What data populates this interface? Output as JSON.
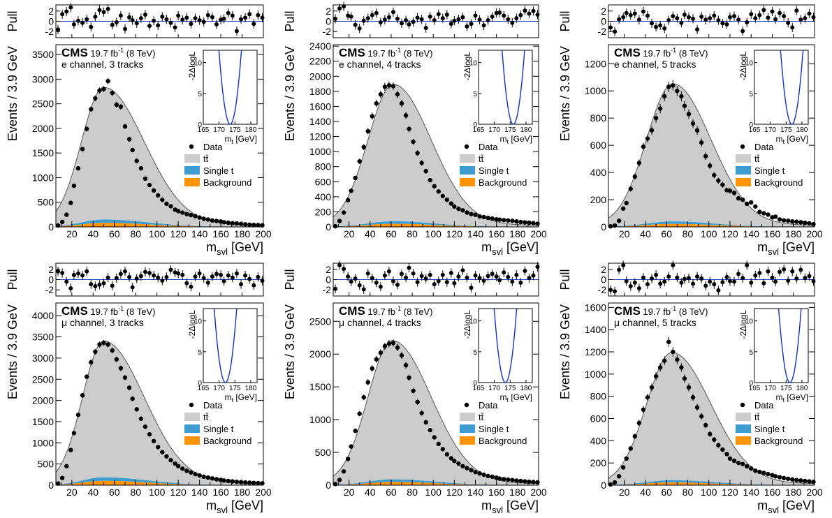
{
  "figure": {
    "colors": {
      "data": "#000000",
      "ttbar": "#cccccc",
      "single_t": "#3e9dd0",
      "background": "#ff9407",
      "pull_line": "#1f3fbf",
      "likelihood_curve": "#1030c8",
      "fit_line": "#555555"
    },
    "legend": {
      "data": "Data",
      "ttbar": "tt̄",
      "single_t": "Single t",
      "background": "Background"
    },
    "cms_label": "CMS",
    "lumi_label_parts": {
      "before": "19.7 fb",
      "sup": "-1",
      "after": " (8 TeV)"
    },
    "pull_label": "Pull",
    "y_label": "Events / 3.9 GeV",
    "x_label_parts": {
      "main": "m",
      "sub": "svl",
      "unit": " [GeV]"
    },
    "inset_y_label": "-2ΔlogL",
    "inset_x_label_parts": {
      "main": "m",
      "sub": "t",
      "unit": " [GeV]"
    }
  },
  "chart_data": [
    {
      "type": "area",
      "channel": "e channel, 3 tracks",
      "peak_x": 50,
      "sigma_lo": 21,
      "sigma_hi": 38,
      "peak_y": 2800,
      "bkg_peak": 150,
      "ylim": [
        0,
        3700
      ],
      "yticks": [
        0,
        500,
        1000,
        1500,
        2000,
        2500,
        3000,
        3500
      ],
      "xlim": [
        5,
        200
      ],
      "xticks": [
        20,
        40,
        60,
        80,
        100,
        120,
        140,
        160,
        180,
        200
      ],
      "x": [
        7,
        11,
        15,
        19,
        22,
        26,
        30,
        34,
        38,
        42,
        46,
        50,
        54,
        58,
        62,
        66,
        70,
        74,
        77,
        81,
        85,
        89,
        93,
        97,
        101,
        105,
        109,
        113,
        117,
        120,
        124,
        128,
        132,
        136,
        140,
        144,
        148,
        152,
        156,
        160,
        163,
        167,
        171,
        175,
        179,
        183,
        187,
        191,
        195,
        199
      ],
      "values": [
        28,
        101,
        247,
        488,
        835,
        1188,
        1580,
        1990,
        2390,
        2610,
        2770,
        2800,
        2960,
        2720,
        2480,
        2440,
        2040,
        1780,
        1560,
        1340,
        1190,
        980,
        850,
        740,
        640,
        550,
        470,
        420,
        350,
        320,
        290,
        260,
        240,
        220,
        190,
        165,
        150,
        130,
        120,
        110,
        95,
        85,
        75,
        70,
        60,
        52,
        45,
        40,
        36,
        32
      ],
      "pulls": [
        -1.6,
        1.4,
        1.9,
        2.7,
        -0.6,
        0.1,
        -0.3,
        0.4,
        -1.1,
        0.9,
        2.2,
        1.8,
        2.4,
        -0.7,
        -0.2,
        1.1,
        -1.5,
        0.8,
        0.2,
        -0.4,
        0.6,
        1.3,
        -0.9,
        0.1,
        -0.8,
        0.9,
        0.4,
        -0.3,
        -1.2,
        1.1,
        0.3,
        0.7,
        -0.5,
        0.6,
        0.2,
        -0.1,
        1.2,
        0.8,
        -0.6,
        0.3,
        0.5,
        1.6,
        1.1,
        -1.9,
        0.4,
        0.7,
        1.4,
        -0.5,
        1.2,
        0.7
      ],
      "inset": {
        "min_x": 173.5,
        "xlim": [
          165,
          182
        ],
        "ylim": [
          0,
          12
        ],
        "curvature": 0.95,
        "xticks": [
          165,
          170,
          175,
          180
        ],
        "yticks": [
          0,
          5,
          10
        ]
      }
    },
    {
      "type": "area",
      "channel": "e channel, 4 tracks",
      "peak_x": 62,
      "sigma_lo": 24,
      "sigma_hi": 36,
      "peak_y": 1870,
      "bkg_peak": 75,
      "ylim": [
        0,
        2420
      ],
      "yticks": [
        0,
        200,
        400,
        600,
        800,
        1000,
        1200,
        1400,
        1600,
        1800,
        2000,
        2200,
        2400
      ],
      "xlim": [
        5,
        200
      ],
      "xticks": [
        20,
        40,
        60,
        80,
        100,
        120,
        140,
        160,
        180,
        200
      ],
      "x": [
        7,
        11,
        15,
        19,
        22,
        26,
        30,
        34,
        38,
        42,
        46,
        50,
        54,
        58,
        62,
        66,
        70,
        74,
        77,
        81,
        85,
        89,
        93,
        97,
        101,
        105,
        109,
        113,
        117,
        120,
        124,
        128,
        132,
        136,
        140,
        144,
        148,
        152,
        156,
        160,
        163,
        167,
        171,
        175,
        179,
        183,
        187,
        191,
        195,
        199
      ],
      "values": [
        8,
        78,
        190,
        355,
        480,
        650,
        870,
        1060,
        1270,
        1470,
        1640,
        1760,
        1860,
        1880,
        1870,
        1760,
        1640,
        1480,
        1300,
        1130,
        980,
        850,
        740,
        620,
        540,
        470,
        410,
        360,
        310,
        270,
        240,
        220,
        190,
        170,
        160,
        140,
        130,
        120,
        110,
        100,
        96,
        90,
        85,
        80,
        72,
        65,
        60,
        55,
        50,
        42
      ],
      "pulls": [
        0.5,
        2.5,
        2.9,
        1.1,
        0.9,
        -0.7,
        -1.4,
        0.1,
        0.6,
        1.2,
        1.6,
        -0.2,
        0.3,
        0.8,
        1.8,
        0.5,
        -0.4,
        0.2,
        -0.6,
        -0.1,
        0.7,
        0.4,
        -1.3,
        0.9,
        0.2,
        1.4,
        0.6,
        1.3,
        -0.5,
        0.1,
        0.4,
        0.8,
        -1.0,
        -0.5,
        1.1,
        0.3,
        -0.8,
        0.2,
        0.9,
        1.6,
        1.7,
        1.1,
        0.4,
        -0.3,
        0.6,
        1.2,
        2.1,
        1.5,
        2.0,
        1.3
      ],
      "inset": {
        "min_x": 176.0,
        "xlim": [
          165,
          182
        ],
        "ylim": [
          0,
          12
        ],
        "curvature": 0.95,
        "xticks": [
          165,
          170,
          175,
          180
        ],
        "yticks": [
          0,
          5,
          10
        ]
      }
    },
    {
      "type": "area",
      "channel": "e channel, 5 tracks",
      "peak_x": 66,
      "sigma_lo": 25,
      "sigma_hi": 36,
      "peak_y": 1040,
      "bkg_peak": 40,
      "ylim": [
        0,
        1340
      ],
      "yticks": [
        0,
        200,
        400,
        600,
        800,
        1000,
        1200
      ],
      "xlim": [
        5,
        200
      ],
      "xticks": [
        20,
        40,
        60,
        80,
        100,
        120,
        140,
        160,
        180,
        200
      ],
      "x": [
        7,
        11,
        15,
        19,
        22,
        26,
        30,
        34,
        38,
        42,
        46,
        50,
        54,
        58,
        62,
        66,
        70,
        74,
        77,
        81,
        85,
        89,
        93,
        97,
        101,
        105,
        109,
        113,
        117,
        120,
        124,
        128,
        132,
        136,
        140,
        144,
        148,
        152,
        156,
        160,
        163,
        167,
        171,
        175,
        179,
        183,
        187,
        191,
        195,
        199
      ],
      "values": [
        4,
        10,
        45,
        135,
        175,
        280,
        370,
        470,
        590,
        650,
        710,
        800,
        870,
        960,
        1030,
        1040,
        1000,
        960,
        890,
        830,
        760,
        710,
        620,
        520,
        450,
        380,
        340,
        310,
        270,
        265,
        250,
        210,
        200,
        170,
        180,
        150,
        110,
        100,
        90,
        70,
        75,
        55,
        48,
        45,
        40,
        38,
        34,
        30,
        26,
        20
      ],
      "pulls": [
        -1.2,
        -2.0,
        0.4,
        0.8,
        1.6,
        1.2,
        1.5,
        0.3,
        1.9,
        1.1,
        -0.4,
        -1.1,
        -0.8,
        -1.4,
        0.2,
        1.0,
        0.6,
        -0.3,
        1.3,
        0.8,
        0.5,
        -1.6,
        0.9,
        0.3,
        0.6,
        1.1,
        0.2,
        -0.4,
        -0.6,
        0.8,
        1.0,
        0.3,
        -1.9,
        -0.2,
        1.4,
        0.6,
        1.2,
        2.2,
        0.7,
        1.9,
        0.4,
        1.6,
        1.0,
        -0.3,
        -1.2,
        2.1,
        0.3,
        0.6,
        1.5,
        0.8
      ],
      "inset": {
        "min_x": 176.8,
        "xlim": [
          165,
          182
        ],
        "ylim": [
          0,
          12
        ],
        "curvature": 0.95,
        "xticks": [
          165,
          170,
          175,
          180
        ],
        "yticks": [
          0,
          5,
          10
        ]
      }
    },
    {
      "type": "area",
      "channel": "μ channel, 3 tracks",
      "peak_x": 50,
      "sigma_lo": 20,
      "sigma_hi": 38,
      "peak_y": 3360,
      "bkg_peak": 185,
      "ylim": [
        0,
        4300
      ],
      "yticks": [
        0,
        500,
        1000,
        1500,
        2000,
        2500,
        3000,
        3500,
        4000
      ],
      "xlim": [
        5,
        200
      ],
      "xticks": [
        20,
        40,
        60,
        80,
        100,
        120,
        140,
        160,
        180,
        200
      ],
      "x": [
        7,
        11,
        15,
        19,
        22,
        26,
        30,
        34,
        38,
        42,
        46,
        50,
        54,
        58,
        62,
        66,
        70,
        74,
        77,
        81,
        85,
        89,
        93,
        97,
        101,
        105,
        109,
        113,
        117,
        120,
        124,
        128,
        132,
        136,
        140,
        144,
        148,
        152,
        156,
        160,
        163,
        167,
        171,
        175,
        179,
        183,
        187,
        191,
        195,
        199
      ],
      "values": [
        40,
        170,
        450,
        830,
        1230,
        1660,
        2120,
        2560,
        2900,
        3150,
        3320,
        3360,
        3320,
        3180,
        2970,
        2760,
        2540,
        2300,
        2040,
        1790,
        1570,
        1380,
        1200,
        1040,
        900,
        780,
        680,
        590,
        510,
        450,
        390,
        340,
        300,
        260,
        230,
        200,
        180,
        160,
        140,
        125,
        110,
        100,
        90,
        80,
        72,
        65,
        60,
        55,
        50,
        45
      ],
      "pulls": [
        1.6,
        1.3,
        -0.4,
        -1.7,
        0.9,
        1.2,
        0.8,
        1.6,
        -0.9,
        -1.3,
        -1.0,
        -0.7,
        0.4,
        -1.2,
        0.3,
        1.1,
        1.6,
        0.5,
        -1.5,
        0.2,
        0.7,
        1.5,
        1.3,
        0.8,
        0.4,
        -0.2,
        0.5,
        1.9,
        1.4,
        1.2,
        0.9,
        -0.7,
        -1.4,
        0.6,
        1.2,
        0.3,
        -0.6,
        0.6,
        1.1,
        0.9,
        -0.3,
        0.8,
        0.4,
        1.2,
        -0.9,
        0.8,
        0.1,
        -1.1,
        0.5,
        -0.2
      ],
      "inset": {
        "min_x": 172.0,
        "xlim": [
          165,
          182
        ],
        "ylim": [
          0,
          12
        ],
        "curvature": 0.95,
        "xticks": [
          165,
          170,
          175,
          180
        ],
        "yticks": [
          0,
          5,
          10
        ]
      }
    },
    {
      "type": "area",
      "channel": "μ channel, 4 tracks",
      "peak_x": 61,
      "sigma_lo": 23,
      "sigma_hi": 37,
      "peak_y": 2180,
      "bkg_peak": 90,
      "ylim": [
        0,
        2780
      ],
      "yticks": [
        0,
        500,
        1000,
        1500,
        2000,
        2500
      ],
      "xlim": [
        5,
        200
      ],
      "xticks": [
        20,
        40,
        60,
        80,
        100,
        120,
        140,
        160,
        180,
        200
      ],
      "x": [
        7,
        11,
        15,
        19,
        22,
        26,
        30,
        34,
        38,
        42,
        46,
        50,
        54,
        58,
        62,
        66,
        70,
        74,
        77,
        81,
        85,
        89,
        93,
        97,
        101,
        105,
        109,
        113,
        117,
        120,
        124,
        128,
        132,
        136,
        140,
        144,
        148,
        152,
        156,
        160,
        163,
        167,
        171,
        175,
        179,
        183,
        187,
        191,
        195,
        199
      ],
      "values": [
        18,
        80,
        210,
        400,
        590,
        830,
        1090,
        1340,
        1570,
        1780,
        1920,
        2020,
        2120,
        2160,
        2170,
        2100,
        1980,
        1830,
        1640,
        1440,
        1270,
        1100,
        960,
        840,
        730,
        630,
        550,
        470,
        410,
        370,
        330,
        290,
        260,
        230,
        200,
        180,
        160,
        140,
        130,
        115,
        100,
        92,
        85,
        78,
        70,
        64,
        58,
        52,
        48,
        44
      ],
      "pulls": [
        -1.8,
        2.8,
        2.1,
        0.6,
        -0.4,
        0.2,
        -1.1,
        -1.9,
        1.2,
        0.3,
        -0.6,
        -1.4,
        0.8,
        1.6,
        -0.3,
        -1.0,
        1.1,
        0.4,
        2.3,
        1.2,
        -0.5,
        0.7,
        0.2,
        0.9,
        -0.9,
        -0.3,
        0.9,
        -0.5,
        1.3,
        -0.7,
        0.6,
        1.8,
        0.4,
        -1.6,
        0.8,
        0.3,
        -0.2,
        0.7,
        1.1,
        0.6,
        -0.1,
        1.4,
        0.5,
        -0.4,
        0.9,
        -0.6,
        1.7,
        0.3,
        0.8,
        2.5
      ],
      "inset": {
        "min_x": 173.5,
        "xlim": [
          165,
          182
        ],
        "ylim": [
          0,
          12
        ],
        "curvature": 0.95,
        "xticks": [
          165,
          170,
          175,
          180
        ],
        "yticks": [
          0,
          5,
          10
        ]
      }
    },
    {
      "type": "area",
      "channel": "μ channel, 5 tracks",
      "peak_x": 65,
      "sigma_lo": 24,
      "sigma_hi": 37,
      "peak_y": 1180,
      "bkg_peak": 45,
      "ylim": [
        0,
        1640
      ],
      "yticks": [
        0,
        200,
        400,
        600,
        800,
        1000,
        1200,
        1400,
        1600
      ],
      "xlim": [
        5,
        200
      ],
      "xticks": [
        20,
        40,
        60,
        80,
        100,
        120,
        140,
        160,
        180,
        200
      ],
      "x": [
        7,
        11,
        15,
        19,
        22,
        26,
        30,
        34,
        38,
        42,
        46,
        50,
        54,
        58,
        62,
        66,
        70,
        74,
        77,
        81,
        85,
        89,
        93,
        97,
        101,
        105,
        109,
        113,
        117,
        120,
        124,
        128,
        132,
        136,
        140,
        144,
        148,
        152,
        156,
        160,
        163,
        167,
        171,
        175,
        179,
        183,
        187,
        191,
        195,
        199
      ],
      "values": [
        6,
        25,
        80,
        160,
        240,
        330,
        440,
        560,
        680,
        790,
        880,
        980,
        1060,
        1120,
        1290,
        1200,
        1130,
        1060,
        960,
        880,
        790,
        700,
        620,
        540,
        460,
        410,
        360,
        320,
        280,
        240,
        220,
        200,
        190,
        170,
        150,
        130,
        120,
        110,
        100,
        90,
        80,
        72,
        64,
        58,
        52,
        46,
        42,
        38,
        34,
        30
      ],
      "pulls": [
        -2.0,
        -2.3,
        1.9,
        2.8,
        -0.3,
        -1.3,
        -0.6,
        -1.7,
        0.4,
        -0.9,
        0.2,
        0.9,
        -0.8,
        -0.4,
        0.6,
        2.8,
        0.4,
        -0.6,
        0.1,
        0.3,
        -0.8,
        0.6,
        0.2,
        -1.2,
        -0.4,
        -0.9,
        -2.1,
        -0.5,
        0.5,
        -0.3,
        -0.4,
        1.1,
        0.3,
        2.8,
        -0.6,
        0.8,
        1.3,
        -0.7,
        1.6,
        0.4,
        -0.4,
        1.5,
        2.0,
        -0.2,
        1.6,
        0.2,
        1.9,
        0.3,
        0.7,
        -0.3
      ],
      "inset": {
        "min_x": 176.2,
        "xlim": [
          165,
          182
        ],
        "ylim": [
          0,
          12
        ],
        "curvature": 0.95,
        "xticks": [
          165,
          170,
          175,
          180
        ],
        "yticks": [
          0,
          5,
          10
        ]
      }
    }
  ]
}
